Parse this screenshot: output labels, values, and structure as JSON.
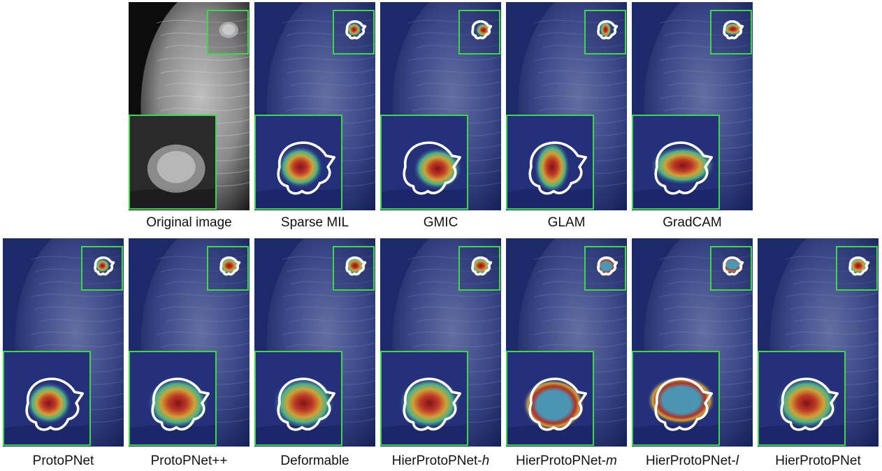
{
  "figure": {
    "row1": [
      {
        "key": "original",
        "label": "Original image",
        "type": "original"
      },
      {
        "key": "sparse_mil",
        "label": "Sparse MIL",
        "type": "heat",
        "blob": "center"
      },
      {
        "key": "gmic",
        "label": "GMIC",
        "type": "heat",
        "blob": "right"
      },
      {
        "key": "glam",
        "label": "GLAM",
        "type": "heat",
        "blob": "vertical"
      },
      {
        "key": "gradcam",
        "label": "GradCAM",
        "type": "heat",
        "blob": "wide"
      }
    ],
    "row2": [
      {
        "key": "protopnet",
        "label": "ProtoPNet",
        "type": "heat",
        "blob": "center"
      },
      {
        "key": "protopnetpp",
        "label": "ProtoPNet++",
        "type": "heat",
        "blob": "full"
      },
      {
        "key": "deformable",
        "label": "Deformable",
        "type": "heat",
        "blob": "full"
      },
      {
        "key": "hier_h",
        "label_main": "HierProtoPNet-",
        "label_suffix": "h",
        "type": "heat",
        "blob": "full"
      },
      {
        "key": "hier_m",
        "label_main": "HierProtoPNet-",
        "label_suffix": "m",
        "type": "heat",
        "blob": "ring"
      },
      {
        "key": "hier_l",
        "label_main": "HierProtoPNet-",
        "label_suffix": "l",
        "type": "heat",
        "blob": "ring-top"
      },
      {
        "key": "hier",
        "label": "HierProtoPNet",
        "type": "heat",
        "blob": "full"
      }
    ],
    "colors": {
      "inset_border": "#3fd64a",
      "contour": "#ffffff",
      "background_heat": "#1c2a6b"
    }
  }
}
